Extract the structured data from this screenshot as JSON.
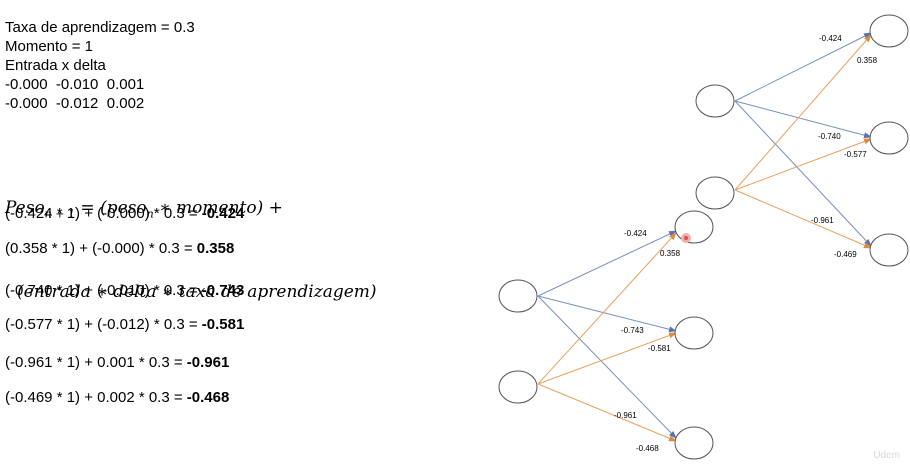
{
  "params": {
    "learning_rate": "Taxa de aprendizagem = 0.3",
    "momentum": "Momento = 1",
    "input_delta_title": "Entrada x delta",
    "row1": "-0.000  -0.010  0.001",
    "row2": "-0.000  -0.012  0.002"
  },
  "formula": {
    "peso": "Peso",
    "sub_n1": "n + 1",
    "eq_part": " = (peso",
    "sub_n": "n",
    "rest1": " ∗ momento) +",
    "line2": "(entrada ∗ delta ∗ taxa de aprendizagem)"
  },
  "calcs": [
    {
      "expr": "(-0.424 * 1) + (-0.000) * 0.3 = ",
      "result": "-0.424"
    },
    {
      "expr": "(0.358 * 1) + (-0.000) * 0.3 = ",
      "result": "0.358"
    },
    {
      "expr": "(-0.740 * 1) + (-0.010) * 0.3 = ",
      "result": "-0.743"
    },
    {
      "expr": "(-0.577 * 1) + (-0.012) * 0.3 = ",
      "result": "-0.581"
    },
    {
      "expr": "(-0.961 * 1) + 0.001 * 0.3 = ",
      "result": "-0.961"
    },
    {
      "expr": "(-0.469 * 1) + 0.002 * 0.3 = ",
      "result": "-0.468"
    }
  ],
  "network_after": {
    "w1": "-0.424",
    "w2": "0.358",
    "w3": "-0.743",
    "w4": "-0.581",
    "w5": "-0.961",
    "w6": "-0.468"
  },
  "network_before": {
    "w1": "-0.424",
    "w2": "0.358",
    "w3": "-0.740",
    "w4": "-0.577",
    "w5": "-0.961",
    "w6": "-0.469"
  },
  "colors": {
    "blue_edge": "#7a8fbf",
    "orange_edge": "#e8a060",
    "cursor": "#e05050"
  },
  "watermark": "Udem"
}
